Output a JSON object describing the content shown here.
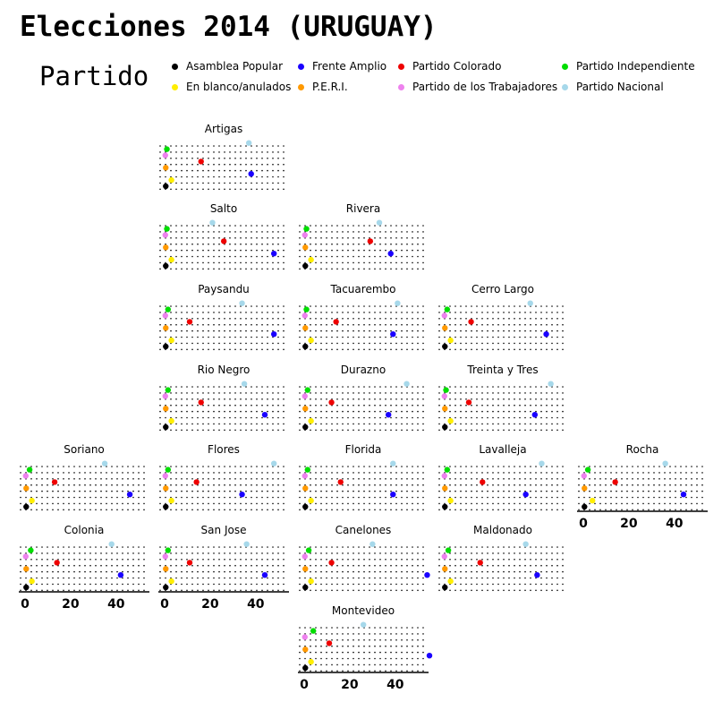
{
  "chart_data": {
    "type": "scatter",
    "title": "Elecciones 2014 (URUGUAY)",
    "legend": {
      "title": "Partido",
      "placement": "top",
      "entries": [
        {
          "name": "Asamblea Popular",
          "color": "#000000"
        },
        {
          "name": "Frente Amplio",
          "color": "#1a00ff"
        },
        {
          "name": "Partido Colorado",
          "color": "#ee0000"
        },
        {
          "name": "Partido Independiente",
          "color": "#00dd00"
        },
        {
          "name": "En blanco/anulados",
          "color": "#ffee00"
        },
        {
          "name": "P.E.R.I.",
          "color": "#ff9900"
        },
        {
          "name": "Partido de los Trabajadores",
          "color": "#ee82ee"
        },
        {
          "name": "Partido Nacional",
          "color": "#a6d8ea"
        }
      ]
    },
    "series_order": [
      "Asamblea Popular",
      "En blanco/anulados",
      "Frente Amplio",
      "P.E.R.I.",
      "Partido Colorado",
      "Partido de los Trabajadores",
      "Partido Independiente",
      "Partido Nacional"
    ],
    "xlim": [
      0,
      55
    ],
    "x_ticks": [
      0,
      20,
      40
    ],
    "grid": true,
    "panels": [
      {
        "name": "Artigas",
        "values": {
          "Asamblea Popular": 0.5,
          "En blanco/anulados": 3,
          "Frente Amplio": 38,
          "P.E.R.I.": 0.5,
          "Partido Colorado": 16,
          "Partido de los Trabajadores": 0.3,
          "Partido Independiente": 1,
          "Partido Nacional": 37
        }
      },
      {
        "name": "Salto",
        "values": {
          "Asamblea Popular": 0.5,
          "En blanco/anulados": 3,
          "Frente Amplio": 48,
          "P.E.R.I.": 0.5,
          "Partido Colorado": 26,
          "Partido de los Trabajadores": 0.3,
          "Partido Independiente": 1,
          "Partido Nacional": 21
        }
      },
      {
        "name": "Rivera",
        "values": {
          "Asamblea Popular": 0.5,
          "En blanco/anulados": 3,
          "Frente Amplio": 38,
          "P.E.R.I.": 0.5,
          "Partido Colorado": 29,
          "Partido de los Trabajadores": 0.3,
          "Partido Independiente": 1,
          "Partido Nacional": 33
        }
      },
      {
        "name": "Paysandu",
        "values": {
          "Asamblea Popular": 0.5,
          "En blanco/anulados": 3,
          "Frente Amplio": 48,
          "P.E.R.I.": 0.5,
          "Partido Colorado": 11,
          "Partido de los Trabajadores": 0.3,
          "Partido Independiente": 1.5,
          "Partido Nacional": 34
        }
      },
      {
        "name": "Tacuarembo",
        "values": {
          "Asamblea Popular": 0.5,
          "En blanco/anulados": 3,
          "Frente Amplio": 39,
          "P.E.R.I.": 0.5,
          "Partido Colorado": 14,
          "Partido de los Trabajadores": 0.3,
          "Partido Independiente": 1,
          "Partido Nacional": 41
        }
      },
      {
        "name": "Cerro Largo",
        "values": {
          "Asamblea Popular": 0.5,
          "En blanco/anulados": 3,
          "Frente Amplio": 45,
          "P.E.R.I.": 0.5,
          "Partido Colorado": 12,
          "Partido de los Trabajadores": 0.3,
          "Partido Independiente": 1.5,
          "Partido Nacional": 38
        }
      },
      {
        "name": "Rio Negro",
        "values": {
          "Asamblea Popular": 0.5,
          "En blanco/anulados": 3,
          "Frente Amplio": 44,
          "P.E.R.I.": 0.5,
          "Partido Colorado": 16,
          "Partido de los Trabajadores": 0.3,
          "Partido Independiente": 1.5,
          "Partido Nacional": 35
        }
      },
      {
        "name": "Durazno",
        "values": {
          "Asamblea Popular": 0.5,
          "En blanco/anulados": 3,
          "Frente Amplio": 37,
          "P.E.R.I.": 0.5,
          "Partido Colorado": 12,
          "Partido de los Trabajadores": 0.3,
          "Partido Independiente": 1.5,
          "Partido Nacional": 45
        }
      },
      {
        "name": "Treinta y Tres",
        "values": {
          "Asamblea Popular": 0.5,
          "En blanco/anulados": 3,
          "Frente Amplio": 40,
          "P.E.R.I.": 0.5,
          "Partido Colorado": 11,
          "Partido de los Trabajadores": 0.3,
          "Partido Independiente": 1,
          "Partido Nacional": 47
        }
      },
      {
        "name": "Soriano",
        "values": {
          "Asamblea Popular": 0.5,
          "En blanco/anulados": 3,
          "Frente Amplio": 46,
          "P.E.R.I.": 0.5,
          "Partido Colorado": 13,
          "Partido de los Trabajadores": 0.3,
          "Partido Independiente": 2,
          "Partido Nacional": 35
        }
      },
      {
        "name": "Flores",
        "values": {
          "Asamblea Popular": 0.5,
          "En blanco/anulados": 3,
          "Frente Amplio": 34,
          "P.E.R.I.": 0.5,
          "Partido Colorado": 14,
          "Partido de los Trabajadores": 0.3,
          "Partido Independiente": 1.5,
          "Partido Nacional": 48
        }
      },
      {
        "name": "Florida",
        "values": {
          "Asamblea Popular": 0.5,
          "En blanco/anulados": 3,
          "Frente Amplio": 39,
          "P.E.R.I.": 0.5,
          "Partido Colorado": 16,
          "Partido de los Trabajadores": 0.3,
          "Partido Independiente": 1.5,
          "Partido Nacional": 39
        }
      },
      {
        "name": "Lavalleja",
        "values": {
          "Asamblea Popular": 0.5,
          "En blanco/anulados": 3,
          "Frente Amplio": 36,
          "P.E.R.I.": 0.5,
          "Partido Colorado": 17,
          "Partido de los Trabajadores": 0.3,
          "Partido Independiente": 1.5,
          "Partido Nacional": 43
        }
      },
      {
        "name": "Rocha",
        "values": {
          "Asamblea Popular": 0.5,
          "En blanco/anulados": 4,
          "Frente Amplio": 44,
          "P.E.R.I.": 0.5,
          "Partido Colorado": 14,
          "Partido de los Trabajadores": 0.3,
          "Partido Independiente": 2,
          "Partido Nacional": 36
        }
      },
      {
        "name": "Colonia",
        "values": {
          "Asamblea Popular": 0.5,
          "En blanco/anulados": 3,
          "Frente Amplio": 42,
          "P.E.R.I.": 0.5,
          "Partido Colorado": 14,
          "Partido de los Trabajadores": 0.3,
          "Partido Independiente": 2.5,
          "Partido Nacional": 38
        }
      },
      {
        "name": "San Jose",
        "values": {
          "Asamblea Popular": 0.5,
          "En blanco/anulados": 3,
          "Frente Amplio": 44,
          "P.E.R.I.": 0.5,
          "Partido Colorado": 11,
          "Partido de los Trabajadores": 0.3,
          "Partido Independiente": 1.5,
          "Partido Nacional": 36
        }
      },
      {
        "name": "Canelones",
        "values": {
          "Asamblea Popular": 0.5,
          "En blanco/anulados": 3,
          "Frente Amplio": 54,
          "P.E.R.I.": 0.5,
          "Partido Colorado": 12,
          "Partido de los Trabajadores": 0.3,
          "Partido Independiente": 2,
          "Partido Nacional": 30
        }
      },
      {
        "name": "Maldonado",
        "values": {
          "Asamblea Popular": 0.5,
          "En blanco/anulados": 3,
          "Frente Amplio": 41,
          "P.E.R.I.": 0.5,
          "Partido Colorado": 16,
          "Partido de los Trabajadores": 0.3,
          "Partido Independiente": 2,
          "Partido Nacional": 36
        }
      },
      {
        "name": "Montevideo",
        "values": {
          "Asamblea Popular": 0.5,
          "En blanco/anulados": 3,
          "Frente Amplio": 55,
          "P.E.R.I.": 0.5,
          "Partido Colorado": 11,
          "Partido de los Trabajadores": 0.3,
          "Partido Independiente": 4,
          "Partido Nacional": 26
        }
      }
    ]
  }
}
